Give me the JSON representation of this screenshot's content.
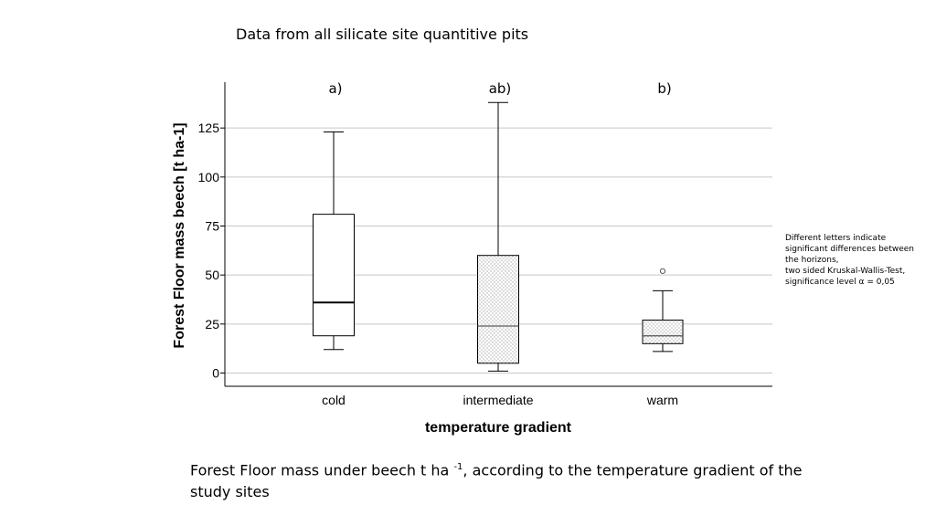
{
  "page_title": "Data from all silicate site quantitive pits",
  "note_lines": [
    "Different letters indicate",
    "significant differences between",
    "the horizons,",
    "two sided Kruskal-Wallis-Test,",
    "significance level α = 0,05"
  ],
  "caption": {
    "before": "Forest Floor mass under beech t ha ",
    "superscript": "-1",
    "after": ", according to the temperature gradient of the study sites"
  },
  "chart_data": {
    "type": "boxplot",
    "xlabel": "temperature gradient",
    "ylabel": "Forest Floor mass beech [t ha-1]",
    "ylim": [
      -7,
      148
    ],
    "yticks": [
      0,
      25,
      50,
      75,
      100,
      125
    ],
    "grid": true,
    "categories": [
      "cold",
      "intermediate",
      "warm"
    ],
    "significance_letters": [
      "a)",
      "ab)",
      "b)"
    ],
    "boxes": [
      {
        "category": "cold",
        "whisker_low": 12,
        "q1": 19,
        "median": 36,
        "q3": 81,
        "whisker_high": 123,
        "outliers": [],
        "fill": "plain"
      },
      {
        "category": "intermediate",
        "whisker_low": 1,
        "q1": 5,
        "median": 24,
        "q3": 60,
        "whisker_high": 138,
        "outliers": [],
        "fill": "dotted"
      },
      {
        "category": "warm",
        "whisker_low": 11,
        "q1": 15,
        "median": 19,
        "q3": 27,
        "whisker_high": 42,
        "outliers": [
          52
        ],
        "fill": "dotted"
      }
    ]
  }
}
